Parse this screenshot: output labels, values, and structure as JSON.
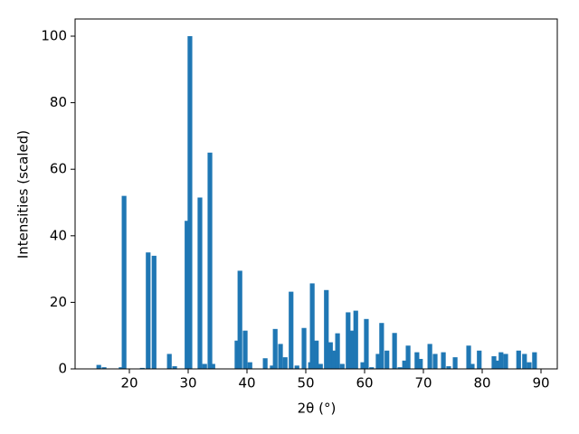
{
  "chart_data": {
    "type": "bar",
    "x_label": "2θ (°)",
    "y_label": "Intensities (scaled)",
    "color": "#1f77b4",
    "x": [
      14.8,
      15.7,
      18.6,
      19.1,
      22.2,
      23.2,
      24.2,
      26.8,
      27.7,
      29.8,
      30.3,
      32.0,
      32.8,
      33.7,
      34.2,
      38.3,
      38.8,
      39.7,
      40.5,
      43.1,
      44.3,
      44.8,
      45.7,
      46.5,
      47.5,
      48.5,
      49.7,
      50.8,
      51.1,
      51.8,
      52.5,
      53.5,
      54.2,
      54.8,
      55.4,
      56.2,
      57.2,
      57.8,
      58.5,
      59.7,
      60.3,
      61.2,
      62.3,
      62.9,
      63.8,
      65.1,
      66.0,
      66.8,
      67.4,
      68.9,
      69.5,
      71.1,
      72.0,
      73.4,
      74.3,
      75.4,
      77.7,
      78.3,
      79.5,
      82.0,
      82.6,
      83.2,
      84.0,
      86.2,
      87.2,
      88.0,
      88.9
    ],
    "values": [
      1.2,
      0.5,
      0.5,
      52,
      0.3,
      35,
      34,
      4.5,
      0.8,
      44.5,
      100,
      51.5,
      1.5,
      65,
      1.5,
      8.5,
      29.5,
      11.5,
      2,
      3.2,
      1,
      12,
      7.5,
      3.5,
      23.2,
      1,
      12.3,
      2,
      25.7,
      8.5,
      1.5,
      23.7,
      8,
      5.5,
      10.7,
      1.5,
      17,
      11.5,
      17.5,
      2,
      15,
      0.5,
      4.5,
      13.8,
      5.5,
      10.8,
      0.5,
      2.5,
      7,
      5,
      3,
      7.5,
      4.5,
      5,
      0.8,
      3.5,
      7,
      1.5,
      5.5,
      3.8,
      2.5,
      5,
      4.5,
      5.5,
      4.5,
      2,
      5
    ],
    "xlim": [
      10.77,
      92.77
    ],
    "ylim": [
      0,
      105.16
    ],
    "xticks": [
      20,
      30,
      40,
      50,
      60,
      70,
      80,
      90
    ],
    "yticks": [
      0,
      20,
      40,
      60,
      80,
      100
    ]
  }
}
